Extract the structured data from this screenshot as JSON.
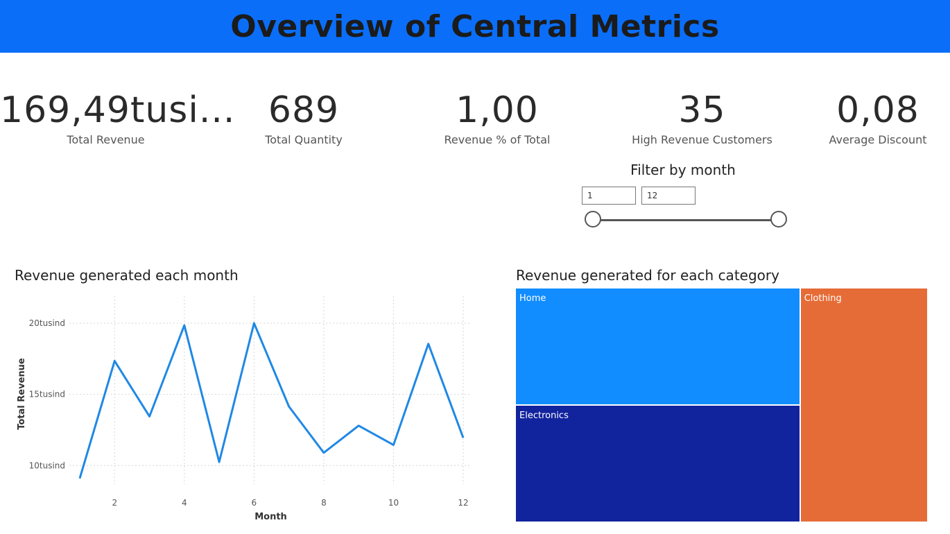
{
  "header": {
    "title": "Overview of Central Metrics",
    "color": "#0a6ef9"
  },
  "kpis": [
    {
      "value": "169,49tusi...",
      "label": "Total Revenue"
    },
    {
      "value": "689",
      "label": "Total Quantity"
    },
    {
      "value": "1,00",
      "label": "Revenue % of Total"
    },
    {
      "value": "35",
      "label": "High Revenue Customers"
    },
    {
      "value": "0,08",
      "label": "Average Discount"
    }
  ],
  "slicer": {
    "title": "Filter by month",
    "min_value": "1",
    "max_value": "12"
  },
  "line_chart_title": "Revenue generated each month",
  "treemap_title": "Revenue generated for each category",
  "chart_data": [
    {
      "type": "line",
      "title": "Revenue generated each month",
      "xlabel": "Month",
      "ylabel": "Total Revenue",
      "x": [
        1,
        2,
        3,
        4,
        5,
        6,
        7,
        8,
        9,
        10,
        11,
        12
      ],
      "values": [
        9100,
        17350,
        13450,
        19850,
        10250,
        20000,
        14150,
        10900,
        12800,
        11450,
        18550,
        11950
      ],
      "xticks": [
        2,
        4,
        6,
        8,
        10,
        12
      ],
      "ytick_values": [
        10000,
        15000,
        20000
      ],
      "ytick_labels": [
        "10tusind",
        "15tusind",
        "20tusind"
      ],
      "xlim": [
        1,
        12
      ],
      "ylim": [
        8700,
        21900
      ],
      "grid": true,
      "color": "#1f88e5"
    },
    {
      "type": "treemap",
      "title": "Revenue generated for each category",
      "categories": [
        "Home",
        "Electronics",
        "Clothing"
      ],
      "values": [
        58.5,
        58.5,
        52.5
      ],
      "colors": [
        "#118dff",
        "#12239e",
        "#e66c37"
      ]
    }
  ]
}
